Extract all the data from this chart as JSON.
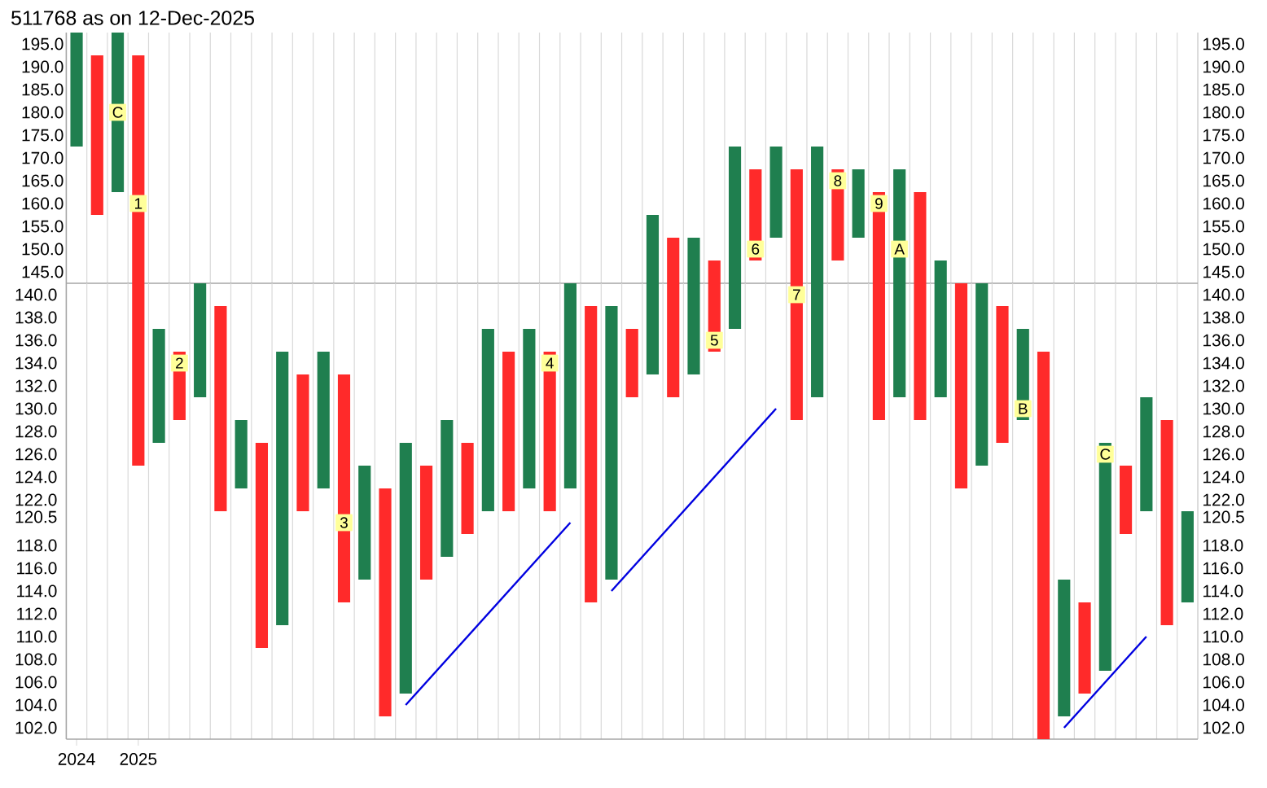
{
  "chart_data": [
    {
      "type": "bar",
      "title": "511768 as on 12-Dec-2025",
      "tick_labels": "y",
      "grid": "x",
      "categories": [
        "2024",
        null,
        null,
        "2025",
        null,
        null,
        null,
        null,
        null,
        null,
        null,
        null,
        null,
        null,
        null,
        null,
        null,
        null,
        null,
        null,
        null,
        null,
        null,
        null,
        null,
        null,
        null,
        null,
        null,
        null,
        null,
        null,
        null,
        null,
        null,
        null,
        null,
        null,
        null,
        null,
        null,
        null,
        null,
        null,
        null,
        null,
        null,
        null,
        null,
        null,
        null,
        null,
        null,
        null,
        null
      ],
      "ylim": [
        142.5,
        197.5
      ],
      "yticks": [
        {
          "value": 145,
          "label": "145.0"
        },
        {
          "value": 150,
          "label": "150.0"
        },
        {
          "value": 155,
          "label": "155.0"
        },
        {
          "value": 160,
          "label": "160.0"
        },
        {
          "value": 165,
          "label": "165.0"
        },
        {
          "value": 170,
          "label": "170.0"
        },
        {
          "value": 175,
          "label": "175.0"
        },
        {
          "value": 180,
          "label": "180.0"
        },
        {
          "value": 185,
          "label": "185.0"
        },
        {
          "value": 190,
          "label": "190.0"
        },
        {
          "value": 195,
          "label": "195.0"
        }
      ],
      "y2lim": [
        142.5,
        197.5
      ],
      "y2ticks": [
        {
          "value": 145,
          "label": "145.0"
        },
        {
          "value": 150,
          "label": "150.0"
        },
        {
          "value": 155,
          "label": "155.0"
        },
        {
          "value": 160,
          "label": "160.0"
        },
        {
          "value": 165,
          "label": "165.0"
        },
        {
          "value": 170,
          "label": "170.0"
        },
        {
          "value": 175,
          "label": "175.0"
        },
        {
          "value": 180,
          "label": "180.0"
        },
        {
          "value": 185,
          "label": "185.0"
        },
        {
          "value": 190,
          "label": "190.0"
        },
        {
          "value": 195,
          "label": "195.0"
        }
      ],
      "annotations": [
        "C",
        "1",
        "6",
        "8",
        "9",
        "A"
      ],
      "series": [
        {
          "color": "#1f7f4f",
          "base": [
            172.5,
            null,
            162.5,
            null,
            null,
            null,
            null,
            null,
            null,
            null,
            null,
            null,
            null,
            null,
            null,
            null,
            null,
            null,
            null,
            null,
            null,
            null,
            null,
            null,
            null,
            null,
            null,
            null,
            142.5,
            null,
            142.5,
            null,
            142.5,
            null,
            152.5,
            null,
            142.5,
            null,
            152.5,
            null,
            142.5,
            null,
            142.5,
            null,
            null,
            null,
            null,
            null,
            null,
            null,
            null,
            null,
            null,
            null,
            null
          ],
          "values": [
            25,
            null,
            35,
            null,
            null,
            null,
            null,
            null,
            null,
            null,
            null,
            null,
            null,
            null,
            null,
            null,
            null,
            null,
            null,
            null,
            null,
            null,
            null,
            null,
            null,
            null,
            null,
            null,
            15,
            null,
            10,
            null,
            30,
            null,
            20,
            null,
            30,
            null,
            15,
            null,
            25,
            null,
            5,
            null,
            null,
            null,
            null,
            null,
            null,
            null,
            null,
            null,
            null,
            null,
            null
          ]
        },
        {
          "color": "#ff2a2a",
          "base": [
            null,
            157.5,
            null,
            142.5,
            null,
            null,
            null,
            null,
            null,
            null,
            null,
            null,
            null,
            null,
            null,
            null,
            null,
            null,
            null,
            null,
            null,
            null,
            null,
            null,
            null,
            null,
            null,
            null,
            null,
            142.5,
            null,
            142.5,
            null,
            147.5,
            null,
            142.5,
            null,
            147.5,
            null,
            142.5,
            null,
            142.5,
            null,
            null,
            null,
            null,
            null,
            null,
            null,
            null,
            null,
            null,
            null,
            null,
            null
          ],
          "values": [
            null,
            35,
            null,
            50,
            null,
            null,
            null,
            null,
            null,
            null,
            null,
            null,
            null,
            null,
            null,
            null,
            null,
            null,
            null,
            null,
            null,
            null,
            null,
            null,
            null,
            null,
            null,
            null,
            null,
            10,
            null,
            5,
            null,
            20,
            null,
            25,
            null,
            20,
            null,
            20,
            null,
            20,
            null,
            null,
            null,
            null,
            null,
            null,
            null,
            null,
            null,
            null,
            null,
            null,
            null
          ]
        },
        {
          "type": "scatter",
          "marker": "square",
          "color": "#ffff99",
          "values": [
            null,
            null,
            180,
            160,
            null,
            null,
            null,
            null,
            null,
            null,
            null,
            null,
            null,
            null,
            null,
            null,
            null,
            null,
            null,
            null,
            null,
            null,
            null,
            null,
            null,
            null,
            null,
            null,
            null,
            null,
            null,
            null,
            null,
            150,
            null,
            null,
            null,
            165,
            null,
            160,
            150,
            null,
            null,
            null,
            null,
            null,
            null,
            null,
            null,
            null,
            null,
            null,
            null,
            null,
            null
          ]
        }
      ]
    },
    {
      "type": "bar",
      "grid": "x",
      "categories": [
        "2024",
        null,
        null,
        "2025",
        null,
        null,
        null,
        null,
        null,
        null,
        null,
        null,
        null,
        null,
        null,
        null,
        null,
        null,
        null,
        null,
        null,
        null,
        null,
        null,
        null,
        null,
        null,
        null,
        null,
        null,
        null,
        null,
        null,
        null,
        null,
        null,
        null,
        null,
        null,
        null,
        null,
        null,
        null,
        null,
        null,
        null,
        null,
        null,
        null,
        null,
        null,
        null,
        null,
        null,
        null
      ],
      "ylim": [
        101,
        141
      ],
      "yticks": [
        {
          "value": 102,
          "label": "102.0"
        },
        {
          "value": 104,
          "label": "104.0"
        },
        {
          "value": 106,
          "label": "106.0"
        },
        {
          "value": 108,
          "label": "108.0"
        },
        {
          "value": 110,
          "label": "110.0"
        },
        {
          "value": 112,
          "label": "112.0"
        },
        {
          "value": 114,
          "label": "114.0"
        },
        {
          "value": 116,
          "label": "116.0"
        },
        {
          "value": 118,
          "label": "118.0"
        },
        {
          "value": 120.5,
          "label": "120.5"
        },
        {
          "value": 122,
          "label": "122.0"
        },
        {
          "value": 124,
          "label": "124.0"
        },
        {
          "value": 126,
          "label": "126.0"
        },
        {
          "value": 128,
          "label": "128.0"
        },
        {
          "value": 130,
          "label": "130.0"
        },
        {
          "value": 132,
          "label": "132.0"
        },
        {
          "value": 134,
          "label": "134.0"
        },
        {
          "value": 136,
          "label": "136.0"
        },
        {
          "value": 138,
          "label": "138.0"
        },
        {
          "value": 140,
          "label": "140.0"
        }
      ],
      "y2lim": [
        101,
        141
      ],
      "y2ticks": [
        {
          "value": 102,
          "label": "102.0"
        },
        {
          "value": 104,
          "label": "104.0"
        },
        {
          "value": 106,
          "label": "106.0"
        },
        {
          "value": 108,
          "label": "108.0"
        },
        {
          "value": 110,
          "label": "110.0"
        },
        {
          "value": 112,
          "label": "112.0"
        },
        {
          "value": 114,
          "label": "114.0"
        },
        {
          "value": 116,
          "label": "116.0"
        },
        {
          "value": 118,
          "label": "118.0"
        },
        {
          "value": 120.5,
          "label": "120.5"
        },
        {
          "value": 122,
          "label": "122.0"
        },
        {
          "value": 124,
          "label": "124.0"
        },
        {
          "value": 126,
          "label": "126.0"
        },
        {
          "value": 128,
          "label": "128.0"
        },
        {
          "value": 130,
          "label": "130.0"
        },
        {
          "value": 132,
          "label": "132.0"
        },
        {
          "value": 134,
          "label": "134.0"
        },
        {
          "value": 136,
          "label": "136.0"
        },
        {
          "value": 138,
          "label": "138.0"
        },
        {
          "value": 140,
          "label": "140.0"
        }
      ],
      "annotations": [
        "2",
        "3",
        "4",
        "5",
        "7",
        "B",
        "C"
      ],
      "series": [
        {
          "color": "#1f7f4f",
          "base": [
            null,
            null,
            null,
            null,
            127,
            null,
            131,
            null,
            123,
            null,
            111,
            null,
            123,
            null,
            115,
            null,
            105,
            null,
            117,
            null,
            121,
            null,
            123,
            null,
            123,
            null,
            115,
            null,
            133,
            null,
            133,
            null,
            137,
            null,
            null,
            null,
            131,
            null,
            null,
            null,
            131,
            null,
            131,
            null,
            125,
            null,
            129,
            null,
            103,
            null,
            107,
            null,
            121,
            null,
            113
          ],
          "values": [
            null,
            null,
            null,
            null,
            10,
            null,
            10,
            null,
            6,
            null,
            24,
            null,
            12,
            null,
            10,
            null,
            22,
            null,
            12,
            null,
            16,
            null,
            14,
            null,
            18,
            null,
            24,
            null,
            8,
            null,
            8,
            null,
            4,
            null,
            null,
            null,
            10,
            null,
            null,
            null,
            10,
            null,
            10,
            null,
            16,
            null,
            8,
            null,
            12,
            null,
            20,
            null,
            10,
            null,
            8
          ]
        },
        {
          "color": "#ff2a2a",
          "base": [
            null,
            null,
            null,
            125,
            null,
            129,
            null,
            121,
            null,
            109,
            null,
            121,
            null,
            113,
            null,
            103,
            null,
            115,
            null,
            119,
            null,
            121,
            null,
            121,
            null,
            113,
            null,
            131,
            null,
            131,
            null,
            135,
            null,
            null,
            null,
            129,
            null,
            null,
            null,
            129,
            null,
            129,
            null,
            123,
            null,
            127,
            null,
            101,
            null,
            105,
            null,
            119,
            null,
            111,
            null
          ],
          "values": [
            null,
            null,
            null,
            16,
            null,
            6,
            null,
            18,
            null,
            18,
            null,
            12,
            null,
            20,
            null,
            20,
            null,
            10,
            null,
            8,
            null,
            14,
            null,
            14,
            null,
            26,
            null,
            6,
            null,
            10,
            null,
            6,
            null,
            null,
            null,
            12,
            null,
            null,
            null,
            12,
            null,
            12,
            null,
            18,
            null,
            12,
            null,
            34,
            null,
            8,
            null,
            6,
            null,
            18,
            null
          ]
        },
        {
          "type": "line",
          "color": "#0000e0",
          "values": [
            null,
            null,
            null,
            null,
            null,
            null,
            null,
            null,
            null,
            null,
            null,
            null,
            null,
            null,
            null,
            null,
            104,
            106,
            108,
            110,
            112,
            114,
            116,
            118,
            120,
            null,
            null,
            null,
            null,
            null,
            null,
            null,
            null,
            null,
            null,
            null,
            null,
            null,
            null,
            null,
            null,
            null,
            null,
            null,
            null,
            null,
            null,
            null,
            null,
            null,
            null,
            null,
            null,
            null,
            null
          ]
        },
        {
          "type": "line",
          "color": "#0000e0",
          "values": [
            null,
            null,
            null,
            null,
            null,
            null,
            null,
            null,
            null,
            null,
            null,
            null,
            null,
            null,
            null,
            null,
            null,
            null,
            null,
            null,
            null,
            null,
            null,
            null,
            null,
            null,
            114,
            116,
            118,
            120,
            122,
            124,
            126,
            128,
            130,
            null,
            null,
            null,
            null,
            null,
            null,
            null,
            null,
            null,
            null,
            null,
            null,
            null,
            null,
            null,
            null,
            null,
            null,
            null,
            null
          ]
        },
        {
          "type": "line",
          "color": "#0000e0",
          "values": [
            null,
            null,
            null,
            null,
            null,
            null,
            null,
            null,
            null,
            null,
            null,
            null,
            null,
            null,
            null,
            null,
            null,
            null,
            null,
            null,
            null,
            null,
            null,
            null,
            null,
            null,
            null,
            null,
            null,
            null,
            null,
            null,
            null,
            null,
            null,
            null,
            null,
            null,
            null,
            null,
            null,
            null,
            null,
            null,
            null,
            null,
            null,
            null,
            102,
            104,
            106,
            108,
            110,
            null,
            null
          ]
        },
        {
          "type": "scatter",
          "marker": "square",
          "color": "#ffff99",
          "values": [
            null,
            null,
            null,
            null,
            null,
            134,
            null,
            null,
            null,
            null,
            null,
            null,
            null,
            120,
            null,
            null,
            null,
            null,
            null,
            null,
            null,
            null,
            null,
            134,
            null,
            null,
            null,
            null,
            null,
            null,
            null,
            136,
            null,
            null,
            null,
            140,
            null,
            null,
            null,
            null,
            null,
            null,
            null,
            null,
            null,
            null,
            130,
            null,
            null,
            null,
            126,
            null,
            null,
            null,
            null
          ]
        }
      ]
    }
  ]
}
